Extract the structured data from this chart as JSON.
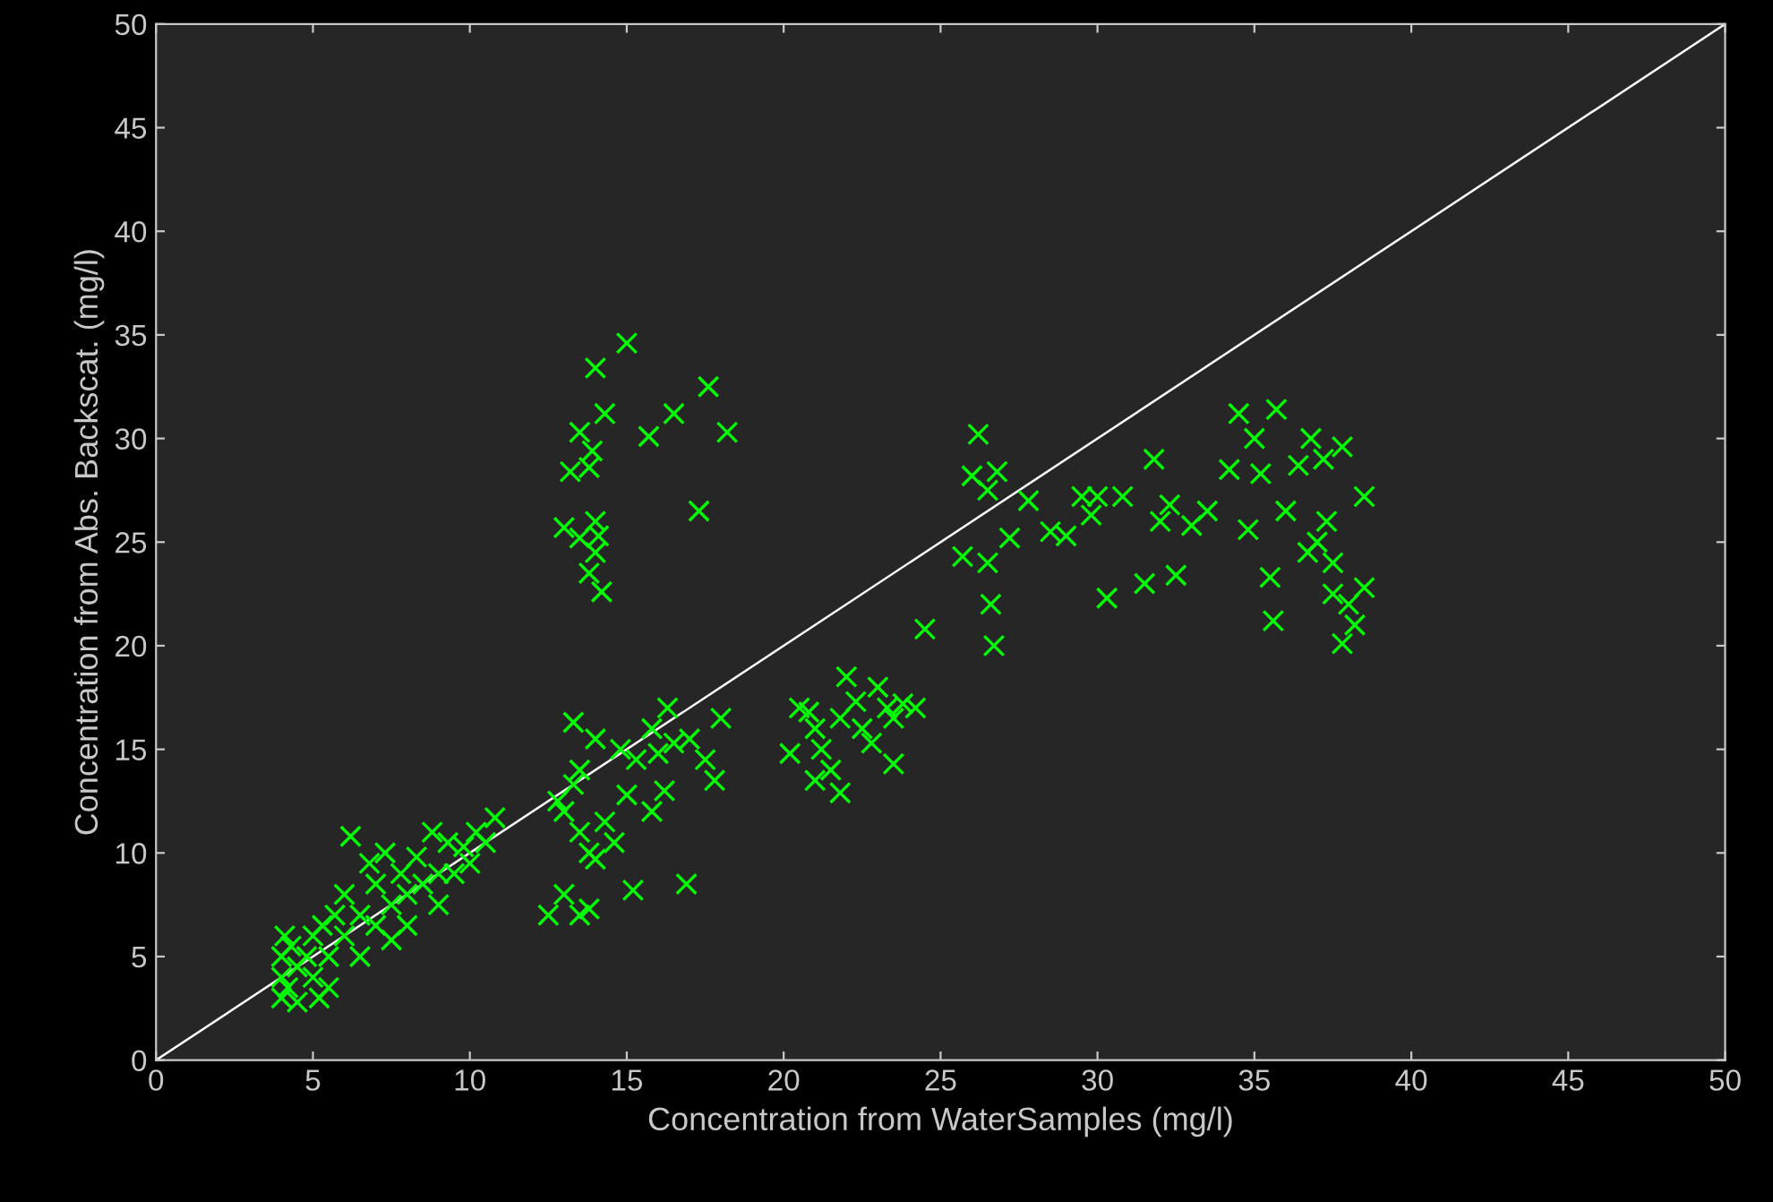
{
  "chart_data": {
    "type": "scatter",
    "xlabel": "Concentration from WaterSamples (mg/l)",
    "ylabel": "Concentration from Abs. Backscat. (mg/l)",
    "xlim": [
      0,
      50
    ],
    "ylim": [
      0,
      50
    ],
    "xticks": [
      0,
      5,
      10,
      15,
      20,
      25,
      30,
      35,
      40,
      45,
      50
    ],
    "yticks": [
      0,
      5,
      10,
      15,
      20,
      25,
      30,
      35,
      40,
      45,
      50
    ],
    "grid": false,
    "legend": false,
    "series": [
      {
        "color": "#00ff00",
        "marker": "cross",
        "x": [
          4,
          4,
          4,
          4.1,
          4.2,
          4.3,
          4.5,
          4.8,
          5,
          5,
          5.3,
          5.5,
          5.7,
          6,
          6,
          6.2,
          6.5,
          6.8,
          7,
          7,
          7.3,
          7.5,
          7.8,
          8,
          8,
          8.3,
          8.5,
          8.8,
          9,
          9,
          9.3,
          9.5,
          9.8,
          10,
          10.2,
          10.5,
          10.8,
          5.5,
          6.5,
          7.5,
          4.5,
          5.2,
          13,
          13.2,
          13.5,
          13.9,
          14,
          14.3,
          13.8,
          14,
          14.1,
          14,
          13.8,
          14.2,
          13.5,
          15,
          15.7,
          16.5,
          17.6,
          18.2,
          17.3,
          12.5,
          13,
          13.5,
          13.8,
          15.2,
          16.9,
          13,
          13.3,
          13.5,
          13.8,
          14,
          14.3,
          14.6,
          15,
          13.3,
          14,
          14.8,
          15.3,
          15.8,
          16,
          16.5,
          16.3,
          17,
          17.5,
          17.8,
          18,
          15.8,
          16.2,
          12.8,
          13.5,
          20.2,
          20.5,
          20.8,
          21,
          21.2,
          21,
          21.5,
          21.8,
          22,
          22.3,
          22.5,
          21.8,
          23,
          23.3,
          23.5,
          23.8,
          23.5,
          24.2,
          22.8,
          24.5,
          25.7,
          26,
          26.2,
          26.5,
          26.8,
          26.5,
          26.6,
          26.7,
          27.2,
          27.8,
          28.5,
          29,
          29.5,
          29.8,
          30,
          30.3,
          30.8,
          31.5,
          31.8,
          32,
          32.3,
          32.5,
          33,
          33.5,
          34.2,
          34.5,
          34.8,
          35,
          35.2,
          35.5,
          35.7,
          35.6,
          36,
          36.4,
          36.8,
          37,
          37.2,
          37.5,
          37.8,
          37.5,
          38,
          37.8,
          38.2,
          38.5,
          38.5,
          36.7,
          37.3
        ],
        "values": [
          3,
          4,
          5,
          6,
          3.5,
          5.5,
          4.5,
          5,
          6,
          4,
          6.5,
          5,
          7,
          6,
          8,
          10.8,
          7,
          9.5,
          6.5,
          8.5,
          10,
          7.5,
          9,
          6.5,
          8,
          9.8,
          8.5,
          11,
          9,
          7.5,
          10.5,
          9,
          10.3,
          9.5,
          11,
          10.5,
          11.7,
          3.5,
          5,
          5.8,
          2.8,
          3,
          25.7,
          28.4,
          30.3,
          29.4,
          33.4,
          31.2,
          28.6,
          26,
          25.3,
          24.5,
          23.5,
          22.6,
          25.2,
          34.6,
          30.1,
          31.2,
          32.5,
          30.3,
          26.5,
          7,
          8,
          7,
          7.3,
          8.2,
          8.5,
          12,
          13.3,
          11,
          10,
          9.7,
          11.5,
          10.5,
          12.8,
          16.3,
          15.5,
          15,
          14.5,
          16,
          14.8,
          15.3,
          17,
          15.5,
          14.5,
          13.5,
          16.5,
          12,
          13,
          12.5,
          14,
          14.8,
          17,
          16.8,
          16,
          15,
          13.5,
          14,
          16.5,
          18.5,
          17.3,
          16,
          12.9,
          18,
          17,
          16.5,
          17.2,
          14.3,
          17,
          15.3,
          20.8,
          24.3,
          28.2,
          30.2,
          27.5,
          28.4,
          24,
          22,
          20,
          25.2,
          27,
          25.5,
          25.3,
          27.2,
          26.3,
          27.2,
          22.3,
          27.2,
          23,
          29,
          26,
          26.8,
          23.4,
          25.8,
          26.5,
          28.5,
          31.2,
          25.6,
          30,
          28.3,
          23.3,
          31.4,
          21.2,
          26.5,
          28.7,
          30,
          25,
          29,
          24,
          29.6,
          22.5,
          22,
          20.1,
          21,
          27.2,
          22.8,
          24.5,
          26
        ]
      },
      {
        "type": "line",
        "color": "#ffffff",
        "x": [
          0,
          50
        ],
        "values": [
          0,
          50
        ]
      }
    ]
  }
}
